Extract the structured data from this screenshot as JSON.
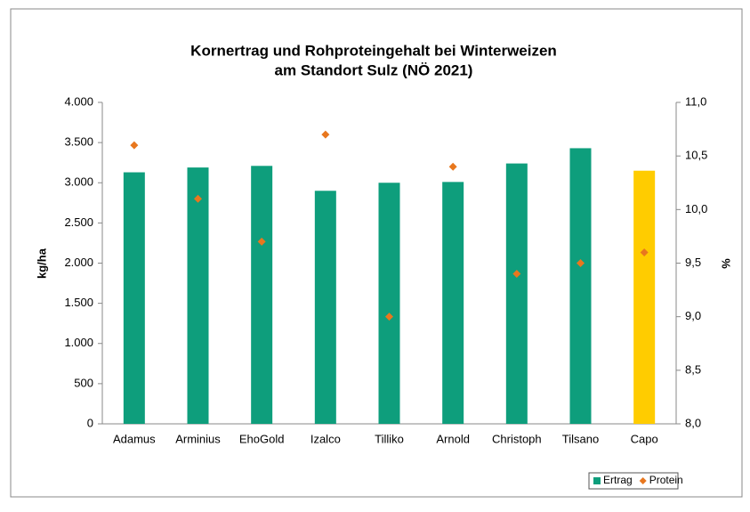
{
  "chart_data": {
    "type": "bar_line",
    "title": [
      "Kornertrag und Rohproteingehalt bei Winterweizen",
      "am Standort Sulz (NÖ 2021)"
    ],
    "categories": [
      "Adamus",
      "Arminius",
      "EhoGold",
      "Izalco",
      "Tilliko",
      "Arnold",
      "Christoph",
      "Tilsano",
      "Capo"
    ],
    "series": [
      {
        "name": "Ertrag",
        "color": "#0e9e7c",
        "point_colors": [
          "#0e9e7c",
          "#0e9e7c",
          "#0e9e7c",
          "#0e9e7c",
          "#0e9e7c",
          "#0e9e7c",
          "#0e9e7c",
          "#0e9e7c",
          "#ffcc00"
        ],
        "values": [
          3130,
          3190,
          3210,
          2900,
          3000,
          3010,
          3240,
          3430,
          3150
        ]
      },
      {
        "name": "Protein",
        "color": "#e8771e",
        "axis": "y2",
        "values": [
          10.6,
          10.1,
          9.7,
          10.7,
          9.0,
          10.4,
          9.4,
          9.5,
          9.6
        ]
      }
    ],
    "ylabel": "kg/ha",
    "y2label": "%",
    "ylim": [
      0,
      4000
    ],
    "yticks": [
      0,
      500,
      {
        "value": 1000,
        "label": "1.000"
      },
      {
        "value": 1500,
        "label": "1.500"
      },
      {
        "value": 2000,
        "label": "2.000"
      },
      {
        "value": 2500,
        "label": "2.500"
      },
      {
        "value": 3000,
        "label": "3.000"
      },
      {
        "value": 3500,
        "label": "3.500"
      },
      {
        "value": 4000,
        "label": "4.000"
      }
    ],
    "y2lim": [
      8,
      11
    ],
    "y2ticks": [
      {
        "value": 8,
        "label": "8,0"
      },
      {
        "value": 8.5,
        "label": "8,5"
      },
      {
        "value": 9,
        "label": "9,0"
      },
      {
        "value": 9.5,
        "label": "9,5"
      },
      {
        "value": 10,
        "label": "10,0"
      },
      {
        "value": 10.5,
        "label": "10,5"
      },
      {
        "value": 11,
        "label": "11,0"
      }
    ],
    "grid": false,
    "legend": "bottom-right"
  }
}
